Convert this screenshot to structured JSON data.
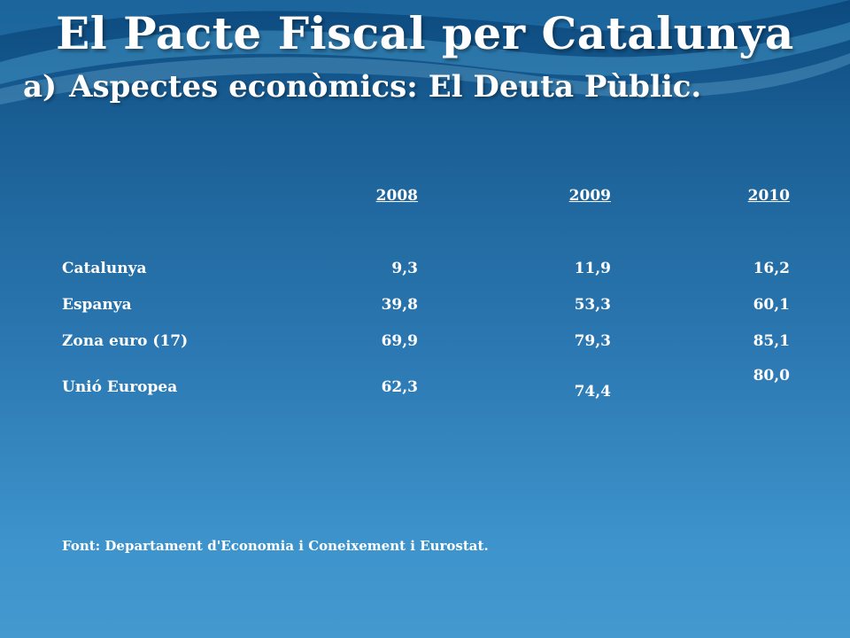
{
  "slide": {
    "title": "El Pacte Fiscal per Catalunya",
    "subtitle_marker": "a)",
    "subtitle_part1": "Aspectes econòmics:",
    "subtitle_part2": "El Deuta Pùblic."
  },
  "table": {
    "columns": [
      " 2008",
      "2009 ",
      "2010"
    ],
    "rows": [
      {
        "label": "Catalunya",
        "values": [
          "9,3",
          "11,9",
          "16,2"
        ]
      },
      {
        "label": "Espanya",
        "values": [
          "39,8",
          "53,3",
          "60,1"
        ]
      },
      {
        "label": "Zona euro (17)",
        "values": [
          "69,9",
          "79,3",
          "85,1"
        ]
      },
      {
        "label": "Unió Europea",
        "values": [
          "62,3",
          "74,4",
          "80,0"
        ]
      }
    ]
  },
  "source": "Font: Departament d'Economia i Coneixement i Eurostat.",
  "colors": {
    "background_top": "#0c4a7e",
    "background_bottom": "#4499cf",
    "text": "#ffffff"
  }
}
